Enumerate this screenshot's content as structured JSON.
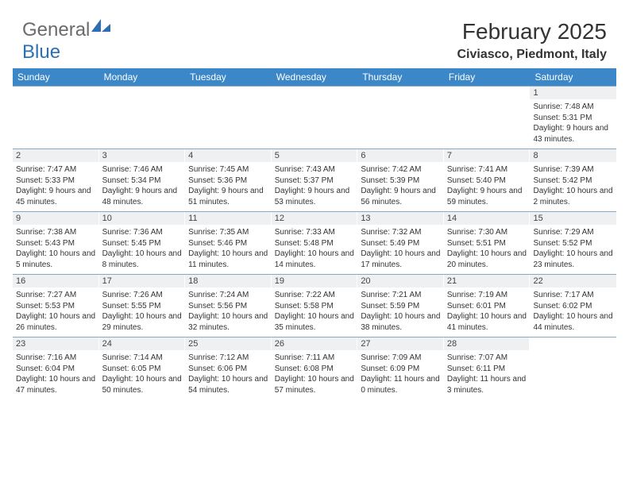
{
  "logo": {
    "general": "General",
    "blue": "Blue"
  },
  "title": "February 2025",
  "location": "Civiasco, Piedmont, Italy",
  "colors": {
    "header_bg": "#3b87c8",
    "daynum_bg": "#eef0f2",
    "divider": "#8aa8c2",
    "logo_gray": "#6b6b6b",
    "logo_blue": "#2d6fb5"
  },
  "day_headers": [
    "Sunday",
    "Monday",
    "Tuesday",
    "Wednesday",
    "Thursday",
    "Friday",
    "Saturday"
  ],
  "weeks": [
    [
      {
        "n": "",
        "lines": []
      },
      {
        "n": "",
        "lines": []
      },
      {
        "n": "",
        "lines": []
      },
      {
        "n": "",
        "lines": []
      },
      {
        "n": "",
        "lines": []
      },
      {
        "n": "",
        "lines": []
      },
      {
        "n": "1",
        "lines": [
          "Sunrise: 7:48 AM",
          "Sunset: 5:31 PM",
          "Daylight: 9 hours and 43 minutes."
        ]
      }
    ],
    [
      {
        "n": "2",
        "lines": [
          "Sunrise: 7:47 AM",
          "Sunset: 5:33 PM",
          "Daylight: 9 hours and 45 minutes."
        ]
      },
      {
        "n": "3",
        "lines": [
          "Sunrise: 7:46 AM",
          "Sunset: 5:34 PM",
          "Daylight: 9 hours and 48 minutes."
        ]
      },
      {
        "n": "4",
        "lines": [
          "Sunrise: 7:45 AM",
          "Sunset: 5:36 PM",
          "Daylight: 9 hours and 51 minutes."
        ]
      },
      {
        "n": "5",
        "lines": [
          "Sunrise: 7:43 AM",
          "Sunset: 5:37 PM",
          "Daylight: 9 hours and 53 minutes."
        ]
      },
      {
        "n": "6",
        "lines": [
          "Sunrise: 7:42 AM",
          "Sunset: 5:39 PM",
          "Daylight: 9 hours and 56 minutes."
        ]
      },
      {
        "n": "7",
        "lines": [
          "Sunrise: 7:41 AM",
          "Sunset: 5:40 PM",
          "Daylight: 9 hours and 59 minutes."
        ]
      },
      {
        "n": "8",
        "lines": [
          "Sunrise: 7:39 AM",
          "Sunset: 5:42 PM",
          "Daylight: 10 hours and 2 minutes."
        ]
      }
    ],
    [
      {
        "n": "9",
        "lines": [
          "Sunrise: 7:38 AM",
          "Sunset: 5:43 PM",
          "Daylight: 10 hours and 5 minutes."
        ]
      },
      {
        "n": "10",
        "lines": [
          "Sunrise: 7:36 AM",
          "Sunset: 5:45 PM",
          "Daylight: 10 hours and 8 minutes."
        ]
      },
      {
        "n": "11",
        "lines": [
          "Sunrise: 7:35 AM",
          "Sunset: 5:46 PM",
          "Daylight: 10 hours and 11 minutes."
        ]
      },
      {
        "n": "12",
        "lines": [
          "Sunrise: 7:33 AM",
          "Sunset: 5:48 PM",
          "Daylight: 10 hours and 14 minutes."
        ]
      },
      {
        "n": "13",
        "lines": [
          "Sunrise: 7:32 AM",
          "Sunset: 5:49 PM",
          "Daylight: 10 hours and 17 minutes."
        ]
      },
      {
        "n": "14",
        "lines": [
          "Sunrise: 7:30 AM",
          "Sunset: 5:51 PM",
          "Daylight: 10 hours and 20 minutes."
        ]
      },
      {
        "n": "15",
        "lines": [
          "Sunrise: 7:29 AM",
          "Sunset: 5:52 PM",
          "Daylight: 10 hours and 23 minutes."
        ]
      }
    ],
    [
      {
        "n": "16",
        "lines": [
          "Sunrise: 7:27 AM",
          "Sunset: 5:53 PM",
          "Daylight: 10 hours and 26 minutes."
        ]
      },
      {
        "n": "17",
        "lines": [
          "Sunrise: 7:26 AM",
          "Sunset: 5:55 PM",
          "Daylight: 10 hours and 29 minutes."
        ]
      },
      {
        "n": "18",
        "lines": [
          "Sunrise: 7:24 AM",
          "Sunset: 5:56 PM",
          "Daylight: 10 hours and 32 minutes."
        ]
      },
      {
        "n": "19",
        "lines": [
          "Sunrise: 7:22 AM",
          "Sunset: 5:58 PM",
          "Daylight: 10 hours and 35 minutes."
        ]
      },
      {
        "n": "20",
        "lines": [
          "Sunrise: 7:21 AM",
          "Sunset: 5:59 PM",
          "Daylight: 10 hours and 38 minutes."
        ]
      },
      {
        "n": "21",
        "lines": [
          "Sunrise: 7:19 AM",
          "Sunset: 6:01 PM",
          "Daylight: 10 hours and 41 minutes."
        ]
      },
      {
        "n": "22",
        "lines": [
          "Sunrise: 7:17 AM",
          "Sunset: 6:02 PM",
          "Daylight: 10 hours and 44 minutes."
        ]
      }
    ],
    [
      {
        "n": "23",
        "lines": [
          "Sunrise: 7:16 AM",
          "Sunset: 6:04 PM",
          "Daylight: 10 hours and 47 minutes."
        ]
      },
      {
        "n": "24",
        "lines": [
          "Sunrise: 7:14 AM",
          "Sunset: 6:05 PM",
          "Daylight: 10 hours and 50 minutes."
        ]
      },
      {
        "n": "25",
        "lines": [
          "Sunrise: 7:12 AM",
          "Sunset: 6:06 PM",
          "Daylight: 10 hours and 54 minutes."
        ]
      },
      {
        "n": "26",
        "lines": [
          "Sunrise: 7:11 AM",
          "Sunset: 6:08 PM",
          "Daylight: 10 hours and 57 minutes."
        ]
      },
      {
        "n": "27",
        "lines": [
          "Sunrise: 7:09 AM",
          "Sunset: 6:09 PM",
          "Daylight: 11 hours and 0 minutes."
        ]
      },
      {
        "n": "28",
        "lines": [
          "Sunrise: 7:07 AM",
          "Sunset: 6:11 PM",
          "Daylight: 11 hours and 3 minutes."
        ]
      },
      {
        "n": "",
        "lines": []
      }
    ]
  ]
}
